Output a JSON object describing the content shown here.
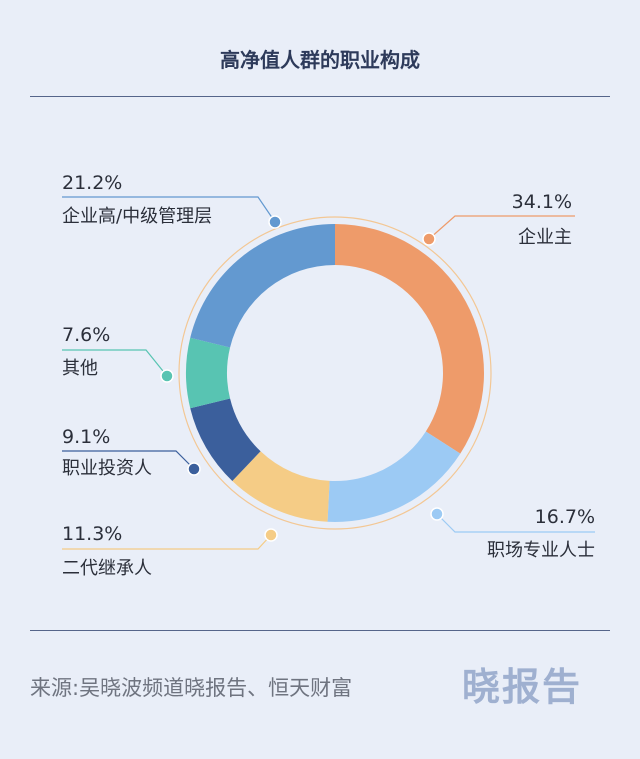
{
  "title": "高净值人群的职业构成",
  "source": "来源:吴晓波频道晓报告、恒天财富",
  "logo": "晓报告",
  "chart_data": {
    "type": "pie",
    "title": "高净值人群的职业构成",
    "categories": [
      "企业主",
      "职场专业人士",
      "二代继承人",
      "职业投资人",
      "其他",
      "企业高/中级管理层"
    ],
    "values": [
      34.1,
      16.7,
      11.3,
      9.1,
      7.6,
      21.2
    ],
    "labels": [
      "34.1%",
      "16.7%",
      "11.3%",
      "9.1%",
      "7.6%",
      "21.2%"
    ],
    "colors": [
      "#ee9b6a",
      "#9ccaf4",
      "#f5cc86",
      "#3b5f9c",
      "#58c4b2",
      "#6399d0"
    ],
    "donut": true,
    "start": "12 o'clock, clockwise"
  }
}
